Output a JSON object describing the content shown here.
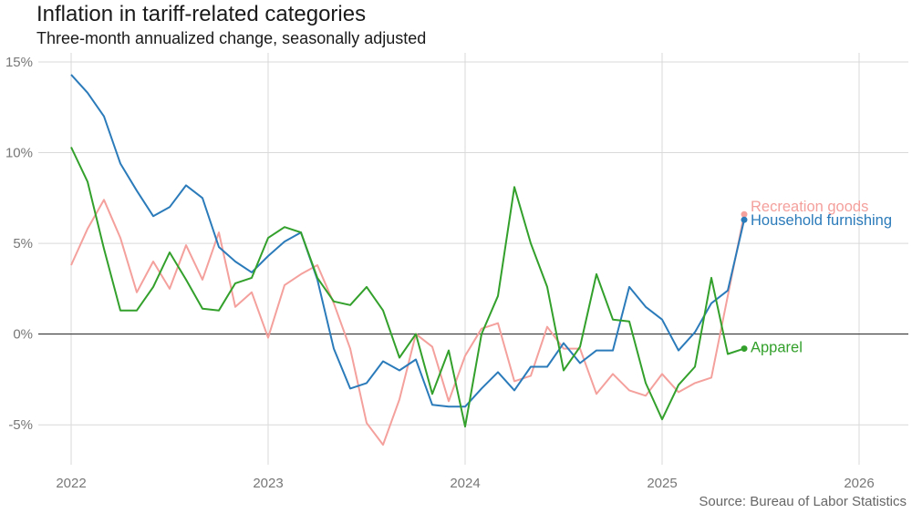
{
  "title": "Inflation in tariff-related categories",
  "subtitle": "Three-month annualized change, seasonally adjusted",
  "source": "Source: Bureau of Labor Statistics",
  "chart_data": {
    "type": "line",
    "title": "Inflation in tariff-related categories",
    "subtitle": "Three-month annualized change, seasonally adjusted",
    "x": [
      "2022-01",
      "2022-02",
      "2022-03",
      "2022-04",
      "2022-05",
      "2022-06",
      "2022-07",
      "2022-08",
      "2022-09",
      "2022-10",
      "2022-11",
      "2022-12",
      "2023-01",
      "2023-02",
      "2023-03",
      "2023-04",
      "2023-05",
      "2023-06",
      "2023-07",
      "2023-08",
      "2023-09",
      "2023-10",
      "2023-11",
      "2023-12",
      "2024-01",
      "2024-02",
      "2024-03",
      "2024-04",
      "2024-05",
      "2024-06",
      "2024-07",
      "2024-08",
      "2024-09",
      "2024-10",
      "2024-11",
      "2024-12",
      "2025-01",
      "2025-02",
      "2025-03",
      "2025-04",
      "2025-05",
      "2025-06"
    ],
    "x_ticks": [
      "2022",
      "2023",
      "2024",
      "2025",
      "2026"
    ],
    "x_range": [
      "2021-11",
      "2026-04"
    ],
    "y_ticks": [
      "15%",
      "10%",
      "5%",
      "0%",
      "-5%"
    ],
    "y_tick_values": [
      15,
      10,
      5,
      0,
      -5
    ],
    "ylim": [
      -7.2,
      15.5
    ],
    "zero_line": true,
    "grid": true,
    "legend": "direct labels at line ends",
    "series": [
      {
        "name": "Recreation goods",
        "color": "#f4a09c",
        "values": [
          3.8,
          5.8,
          7.4,
          5.3,
          2.3,
          4.0,
          2.5,
          4.9,
          3.0,
          5.6,
          1.5,
          2.3,
          -0.2,
          2.7,
          3.3,
          3.8,
          1.7,
          -0.8,
          -4.9,
          -6.1,
          -3.6,
          0.0,
          -0.7,
          -3.7,
          -1.2,
          0.3,
          0.6,
          -2.6,
          -2.3,
          0.4,
          -0.8,
          -0.8,
          -3.3,
          -2.2,
          -3.1,
          -3.4,
          -2.2,
          -3.2,
          -2.7,
          -2.4,
          2.1,
          6.6
        ]
      },
      {
        "name": "Household furnishing",
        "color": "#2b7bba",
        "values": [
          14.3,
          13.3,
          12.0,
          9.4,
          7.9,
          6.5,
          7.0,
          8.2,
          7.5,
          4.8,
          4.0,
          3.4,
          4.3,
          5.1,
          5.6,
          3.0,
          -0.8,
          -3.0,
          -2.7,
          -1.5,
          -2.0,
          -1.4,
          -3.9,
          -4.0,
          -4.0,
          -3.0,
          -2.1,
          -3.1,
          -1.8,
          -1.8,
          -0.5,
          -1.6,
          -0.9,
          -0.9,
          2.6,
          1.5,
          0.8,
          -0.9,
          0.1,
          1.7,
          2.4,
          6.3
        ]
      },
      {
        "name": "Apparel",
        "color": "#33a02c",
        "values": [
          10.3,
          8.4,
          4.7,
          1.3,
          1.3,
          2.6,
          4.5,
          3.0,
          1.4,
          1.3,
          2.8,
          3.1,
          5.3,
          5.9,
          5.6,
          3.1,
          1.8,
          1.6,
          2.6,
          1.3,
          -1.3,
          0.0,
          -3.3,
          -0.9,
          -5.1,
          0.0,
          2.1,
          8.1,
          5.0,
          2.6,
          -2.0,
          -0.7,
          3.3,
          0.8,
          0.7,
          -2.7,
          -4.7,
          -2.8,
          -1.8,
          3.1,
          -1.1,
          -0.8
        ]
      }
    ]
  }
}
